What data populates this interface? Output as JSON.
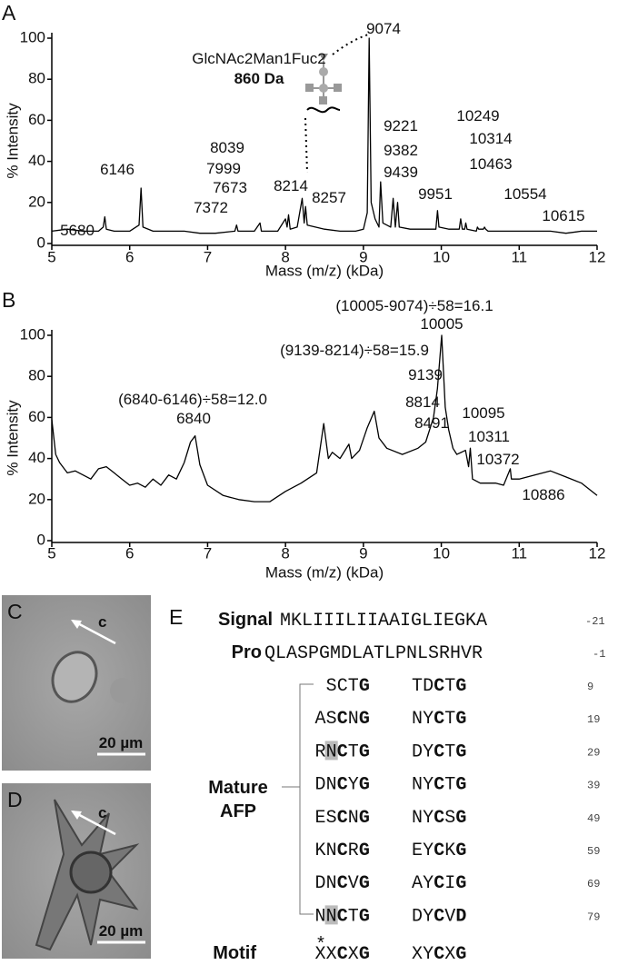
{
  "chart_data": [
    {
      "type": "line",
      "panel": "A",
      "y_label": "% Intensity",
      "x_label": "Mass (m/z) (kDa)",
      "color": "#000000",
      "xlim": [
        5,
        12
      ],
      "xticks": [
        5,
        6,
        7,
        8,
        9,
        10,
        11,
        12
      ],
      "ylim": [
        0,
        100
      ],
      "yticks": [
        0,
        20,
        40,
        60,
        80,
        100
      ],
      "x": [
        5,
        5.2,
        5.4,
        5.6,
        5.66,
        5.68,
        5.7,
        5.8,
        6.0,
        6.12,
        6.146,
        6.17,
        6.3,
        6.5,
        6.7,
        6.9,
        7.1,
        7.35,
        7.372,
        7.39,
        7.6,
        7.673,
        7.69,
        7.9,
        7.999,
        8.02,
        8.039,
        8.06,
        8.15,
        8.214,
        8.24,
        8.257,
        8.28,
        8.5,
        8.7,
        8.9,
        9.0,
        9.05,
        9.074,
        9.1,
        9.15,
        9.2,
        9.221,
        9.25,
        9.35,
        9.382,
        9.41,
        9.439,
        9.46,
        9.6,
        9.8,
        9.93,
        9.951,
        9.97,
        10.1,
        10.23,
        10.249,
        10.27,
        10.3,
        10.314,
        10.33,
        10.45,
        10.463,
        10.48,
        10.54,
        10.554,
        10.57,
        10.6,
        10.615,
        10.63,
        10.8,
        11,
        11.2,
        11.4,
        11.6,
        11.8,
        12
      ],
      "values": [
        6,
        7,
        6,
        6,
        8,
        13,
        7,
        6,
        6,
        9,
        27,
        8,
        6,
        6,
        6,
        5,
        5,
        6,
        9,
        6,
        6,
        10,
        6,
        6,
        12,
        8,
        14,
        7,
        8,
        22,
        10,
        18,
        9,
        7,
        6,
        6,
        7,
        15,
        100,
        20,
        12,
        8,
        30,
        10,
        8,
        22,
        8,
        20,
        8,
        7,
        7,
        7,
        16,
        8,
        7,
        7,
        12,
        7,
        7,
        10,
        7,
        6,
        8,
        7,
        7,
        8,
        7,
        6,
        6,
        6,
        6,
        6,
        6,
        6,
        5,
        6,
        6
      ],
      "peak_labels": [
        "5680",
        "6146",
        "7372",
        "7673",
        "7999",
        "8039",
        "8214",
        "8257",
        "9074",
        "9221",
        "9382",
        "9439",
        "9951",
        "10249",
        "10314",
        "10463",
        "10554",
        "10615"
      ],
      "annotations": [
        "GlcNAc2Man1Fuc2",
        "860 Da"
      ]
    },
    {
      "type": "line",
      "panel": "B",
      "y_label": "% Intensity",
      "x_label": "Mass (m/z) (kDa)",
      "color": "#000000",
      "xlim": [
        5,
        12
      ],
      "xticks": [
        5,
        6,
        7,
        8,
        9,
        10,
        11,
        12
      ],
      "ylim": [
        0,
        100
      ],
      "yticks": [
        0,
        20,
        40,
        60,
        80,
        100
      ],
      "x": [
        5,
        5.05,
        5.1,
        5.2,
        5.3,
        5.4,
        5.5,
        5.6,
        5.7,
        5.8,
        5.9,
        6.0,
        6.1,
        6.2,
        6.3,
        6.4,
        6.5,
        6.6,
        6.7,
        6.78,
        6.84,
        6.9,
        7.0,
        7.2,
        7.4,
        7.6,
        7.8,
        8.0,
        8.2,
        8.4,
        8.491,
        8.55,
        8.6,
        8.7,
        8.814,
        8.85,
        8.95,
        9.05,
        9.139,
        9.2,
        9.3,
        9.5,
        9.7,
        9.8,
        9.9,
        9.95,
        10.005,
        10.05,
        10.095,
        10.15,
        10.2,
        10.311,
        10.35,
        10.372,
        10.4,
        10.5,
        10.6,
        10.7,
        10.8,
        10.886,
        10.9,
        11.0,
        11.2,
        11.4,
        11.6,
        11.8,
        12
      ],
      "values": [
        59,
        42,
        38,
        33,
        34,
        32,
        30,
        35,
        36,
        33,
        30,
        27,
        28,
        26,
        30,
        27,
        32,
        30,
        38,
        48,
        51,
        37,
        27,
        22,
        20,
        19,
        19,
        24,
        28,
        33,
        57,
        40,
        43,
        40,
        47,
        40,
        44,
        55,
        63,
        50,
        45,
        42,
        45,
        48,
        60,
        74,
        100,
        65,
        54,
        45,
        42,
        44,
        36,
        45,
        30,
        28,
        28,
        28,
        27,
        35,
        30,
        30,
        32,
        34,
        31,
        28,
        22
      ],
      "peak_labels": [
        "6840",
        "8491",
        "8814",
        "9139",
        "10005",
        "10095",
        "10311",
        "10372",
        "10886"
      ],
      "annotation_color": "#2e8fcc",
      "annotations": [
        "(6840-6146)÷58=12.0",
        "(9139-8214)÷58=15.9",
        "(10005-9074)÷58=16.1"
      ]
    }
  ],
  "micrographs": [
    {
      "panel": "C",
      "arrow_label": "c",
      "scale_bar": "20 µm"
    },
    {
      "panel": "D",
      "arrow_label": "c",
      "scale_bar": "20 µm"
    }
  ],
  "sequence": {
    "panel": "E",
    "signal": {
      "label": "Signal",
      "seq": "MKLIIILIIAAIGLIEGKA",
      "number": "-21"
    },
    "pro": {
      "label": "Pro",
      "seq": "QLASPGMDLATLPNLSRHVR",
      "number": "-1"
    },
    "mature": {
      "label": [
        "Mature",
        "AFP"
      ],
      "rows": [
        {
          "seq": "SCTG TDCTG",
          "number": "9"
        },
        {
          "seq": "ASCNG NYCTG",
          "number": "19"
        },
        {
          "seq": "RNCTG DYCTG",
          "number": "29"
        },
        {
          "seq": "DNCYG NYCTG",
          "number": "39"
        },
        {
          "seq": "ESCNG NYCSG",
          "number": "49"
        },
        {
          "seq": "KNCRG EYCKG",
          "number": "59"
        },
        {
          "seq": "DNCVG AYCIG",
          "number": "69"
        },
        {
          "seq": "NNCTG DYCVD",
          "number": "79"
        }
      ]
    },
    "motif": {
      "label": "Motif",
      "seq": "XXCXG XYCXG",
      "mark": "*"
    }
  }
}
